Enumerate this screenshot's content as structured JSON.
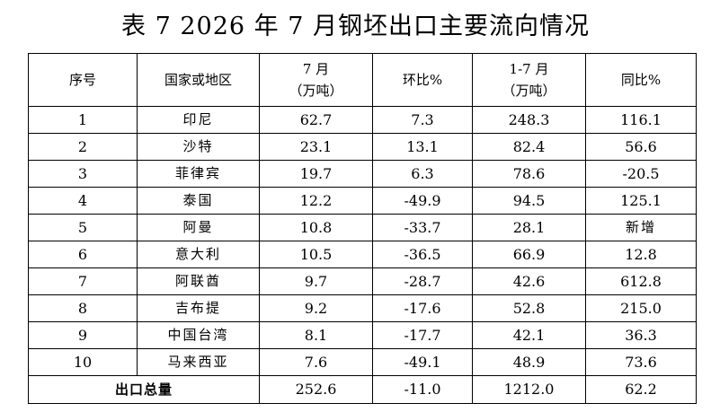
{
  "title": "表 7  2026 年 7 月钢坯出口主要流向情况",
  "headers": {
    "seq": "序号",
    "region": "国家或地区",
    "july_line1": "7 月",
    "july_line2": "（万吨）",
    "mom": "环比%",
    "ytd_line1": "1-7 月",
    "ytd_line2": "（万吨）",
    "yoy": "同比%"
  },
  "rows": [
    {
      "seq": "1",
      "region": "印尼",
      "july": "62.7",
      "mom": "7.3",
      "ytd": "248.3",
      "yoy": "116.1"
    },
    {
      "seq": "2",
      "region": "沙特",
      "july": "23.1",
      "mom": "13.1",
      "ytd": "82.4",
      "yoy": "56.6"
    },
    {
      "seq": "3",
      "region": "菲律宾",
      "july": "19.7",
      "mom": "6.3",
      "ytd": "78.6",
      "yoy": "-20.5"
    },
    {
      "seq": "4",
      "region": "泰国",
      "july": "12.2",
      "mom": "-49.9",
      "ytd": "94.5",
      "yoy": "125.1"
    },
    {
      "seq": "5",
      "region": "阿曼",
      "july": "10.8",
      "mom": "-33.7",
      "ytd": "28.1",
      "yoy": "新增"
    },
    {
      "seq": "6",
      "region": "意大利",
      "july": "10.5",
      "mom": "-36.5",
      "ytd": "66.9",
      "yoy": "12.8"
    },
    {
      "seq": "7",
      "region": "阿联酋",
      "july": "9.7",
      "mom": "-28.7",
      "ytd": "42.6",
      "yoy": "612.8"
    },
    {
      "seq": "8",
      "region": "吉布提",
      "july": "9.2",
      "mom": "-17.6",
      "ytd": "52.8",
      "yoy": "215.0"
    },
    {
      "seq": "9",
      "region": "中国台湾",
      "july": "8.1",
      "mom": "-17.7",
      "ytd": "42.1",
      "yoy": "36.3"
    },
    {
      "seq": "10",
      "region": "马来西亚",
      "july": "7.6",
      "mom": "-49.1",
      "ytd": "48.9",
      "yoy": "73.6"
    }
  ],
  "total": {
    "label": "出口总量",
    "july": "252.6",
    "mom": "-11.0",
    "ytd": "1212.0",
    "yoy": "62.2"
  }
}
